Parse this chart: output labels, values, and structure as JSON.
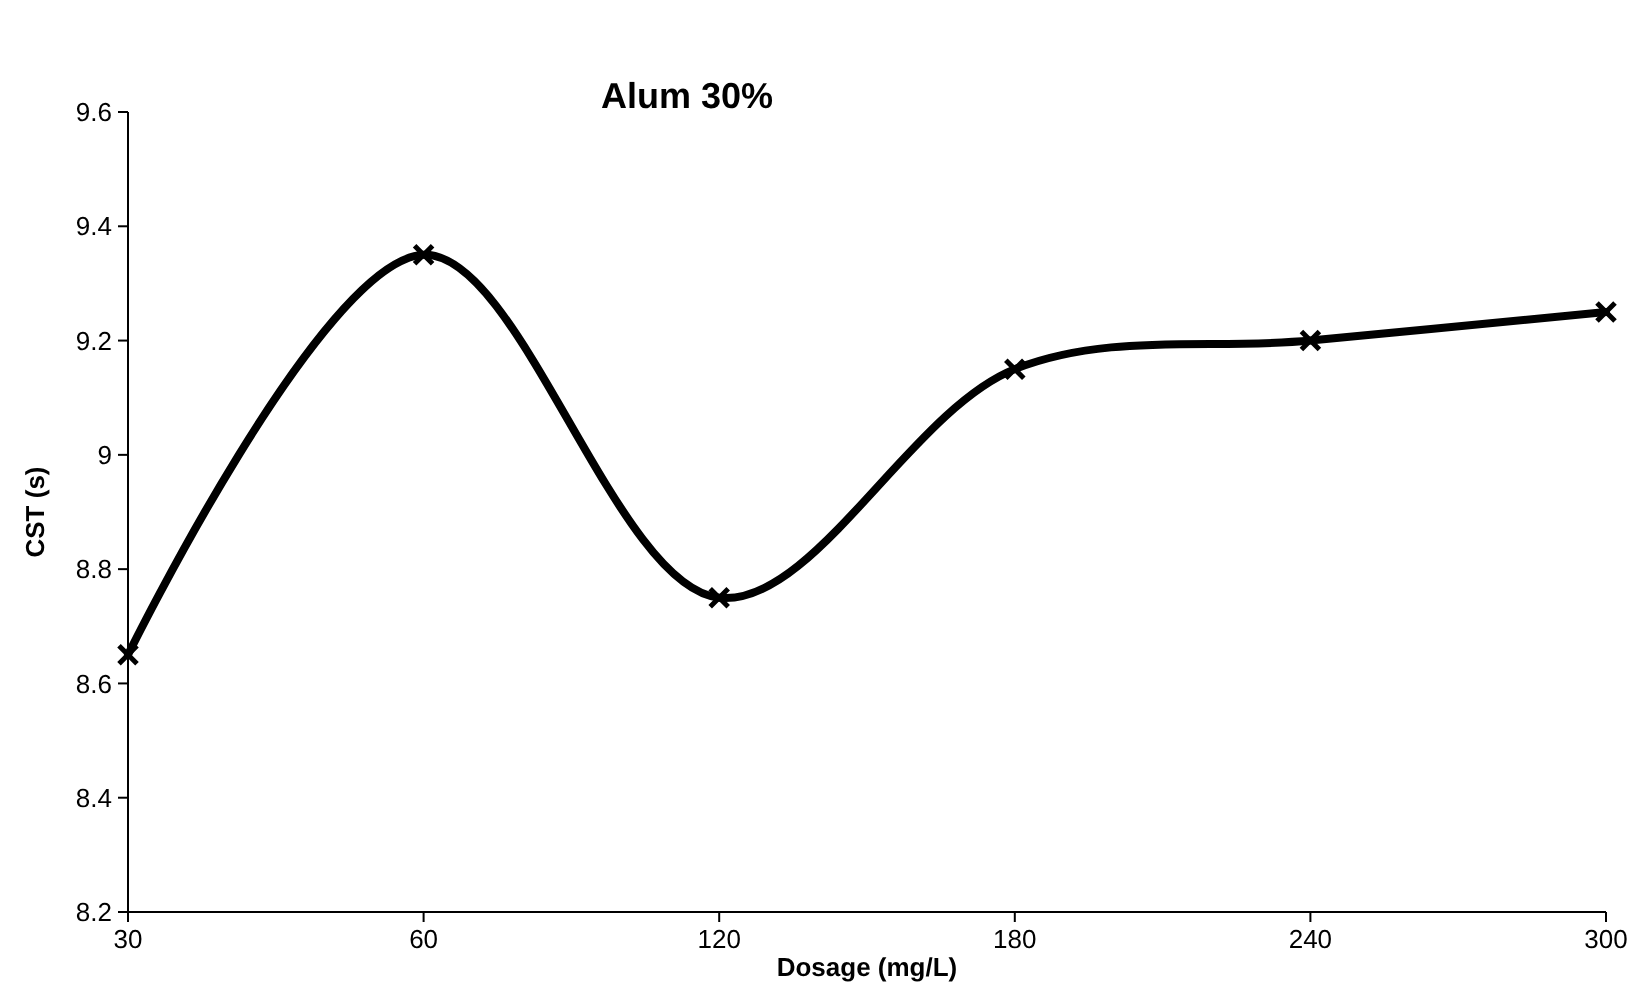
{
  "chart_data": {
    "type": "line",
    "title": "Alum 30%",
    "xlabel": "Dosage (mg/L)",
    "ylabel": "CST (s)",
    "categories": [
      "30",
      "60",
      "120",
      "180",
      "240",
      "300"
    ],
    "series": [
      {
        "color": "#000000",
        "values": [
          8.65,
          9.35,
          8.75,
          9.15,
          9.2,
          9.25
        ]
      }
    ],
    "ylim": [
      8.2,
      9.6
    ],
    "yticks": [
      8.2,
      8.4,
      8.6,
      8.8,
      9,
      9.2,
      9.4,
      9.6
    ],
    "grid": false,
    "marker": "cross",
    "line_style": "solid"
  }
}
